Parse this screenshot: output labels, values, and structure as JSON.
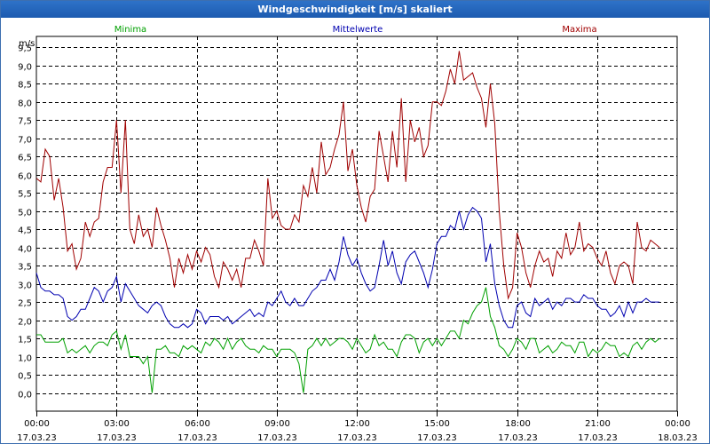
{
  "window": {
    "title": "Windgeschwindigkeit [m/s] skaliert"
  },
  "colors": {
    "minima": "#00a000",
    "mittel": "#0000b0",
    "maxima": "#a00000",
    "grid": "#000000",
    "title_bg": "#2468c0"
  },
  "chart_data": {
    "type": "line",
    "title": "Windgeschwindigkeit [m/s] skaliert",
    "ylabel": "m/s",
    "xlabel": "",
    "ylim": [
      -0.5,
      9.8
    ],
    "yticks": [
      "0,0",
      "0,5",
      "1,0",
      "1,5",
      "2,0",
      "2,5",
      "3,0",
      "3,5",
      "4,0",
      "4,5",
      "5,0",
      "5,5",
      "6,0",
      "6,5",
      "7,0",
      "7,5",
      "8,0",
      "8,5",
      "9,0",
      "9,5"
    ],
    "xlim": [
      0,
      24
    ],
    "xticks": [
      {
        "time": "00:00",
        "date": "17.03.23"
      },
      {
        "time": "03:00",
        "date": "17.03.23"
      },
      {
        "time": "06:00",
        "date": "17.03.23"
      },
      {
        "time": "09:00",
        "date": "17.03.23"
      },
      {
        "time": "12:00",
        "date": "17.03.23"
      },
      {
        "time": "15:00",
        "date": "17.03.23"
      },
      {
        "time": "18:00",
        "date": "17.03.23"
      },
      {
        "time": "21:00",
        "date": "17.03.23"
      },
      {
        "time": "00:00",
        "date": "18.03.23"
      }
    ],
    "legend": [
      "Minima",
      "Mittelwerte",
      "Maxima"
    ],
    "series": [
      {
        "name": "Maxima",
        "color": "#a00000",
        "x_start": 0,
        "x_step": 0.1667,
        "values": [
          5.9,
          5.8,
          6.7,
          6.5,
          5.3,
          5.9,
          5.1,
          3.9,
          4.1,
          3.4,
          3.7,
          4.7,
          4.3,
          4.7,
          4.8,
          5.8,
          6.2,
          6.2,
          7.5,
          5.5,
          7.5,
          4.5,
          4.1,
          4.9,
          4.3,
          4.5,
          4.0,
          5.1,
          4.6,
          4.2,
          3.7,
          2.9,
          3.7,
          3.3,
          3.8,
          3.4,
          3.9,
          3.6,
          4.0,
          3.8,
          3.2,
          2.9,
          3.6,
          3.4,
          3.1,
          3.4,
          2.9,
          3.7,
          3.7,
          4.2,
          3.9,
          3.5,
          5.9,
          4.8,
          5.0,
          4.6,
          4.5,
          4.5,
          4.9,
          4.7,
          5.7,
          5.4,
          6.2,
          5.5,
          6.9,
          6.0,
          6.2,
          6.7,
          7.1,
          8.0,
          6.1,
          6.7,
          5.7,
          5.1,
          4.7,
          5.4,
          5.6,
          7.2,
          6.5,
          5.8,
          7.2,
          6.2,
          8.1,
          5.8,
          7.5,
          6.9,
          7.3,
          6.5,
          6.8,
          8.0,
          8.0,
          7.9,
          8.3,
          8.9,
          8.5,
          9.4,
          8.6,
          8.7,
          8.8,
          8.4,
          8.1,
          7.3,
          8.5,
          7.4,
          5.0,
          3.5,
          2.6,
          2.9,
          4.4,
          4.0,
          3.3,
          2.9,
          3.5,
          3.9,
          3.6,
          3.7,
          3.2,
          3.9,
          3.7,
          4.4,
          3.8,
          4.0,
          4.7,
          3.9,
          4.1,
          4.0,
          3.7,
          3.5,
          3.9,
          3.3,
          3.0,
          3.5,
          3.6,
          3.5,
          3.0,
          4.7,
          4.0,
          3.9,
          4.2,
          4.1,
          4.0
        ]
      },
      {
        "name": "Mittelwerte",
        "color": "#0000b0",
        "x_start": 0,
        "x_step": 0.1667,
        "values": [
          3.3,
          2.9,
          2.8,
          2.8,
          2.7,
          2.7,
          2.6,
          2.1,
          2.0,
          2.1,
          2.3,
          2.3,
          2.6,
          2.9,
          2.8,
          2.5,
          2.8,
          2.9,
          3.2,
          2.5,
          3.0,
          2.8,
          2.6,
          2.4,
          2.3,
          2.2,
          2.4,
          2.5,
          2.4,
          2.1,
          1.9,
          1.8,
          1.8,
          1.9,
          1.8,
          1.9,
          2.3,
          2.2,
          1.9,
          2.1,
          2.1,
          2.1,
          2.0,
          2.1,
          1.9,
          2.0,
          2.1,
          2.2,
          2.3,
          2.1,
          2.2,
          2.1,
          2.5,
          2.4,
          2.6,
          2.8,
          2.5,
          2.4,
          2.6,
          2.4,
          2.4,
          2.6,
          2.8,
          2.9,
          3.1,
          3.1,
          3.4,
          3.1,
          3.6,
          4.3,
          3.8,
          3.5,
          3.7,
          3.3,
          3.0,
          2.8,
          2.9,
          3.5,
          4.2,
          3.5,
          3.9,
          3.3,
          3.0,
          3.6,
          3.8,
          3.9,
          3.6,
          3.3,
          2.9,
          3.4,
          4.1,
          4.3,
          4.3,
          4.6,
          4.5,
          5.0,
          4.5,
          4.9,
          5.1,
          5.0,
          4.8,
          3.6,
          4.1,
          3.0,
          2.4,
          2.0,
          1.8,
          1.8,
          2.4,
          2.5,
          2.2,
          2.1,
          2.6,
          2.4,
          2.5,
          2.6,
          2.3,
          2.5,
          2.4,
          2.6,
          2.6,
          2.5,
          2.5,
          2.7,
          2.6,
          2.6,
          2.4,
          2.3,
          2.3,
          2.1,
          2.2,
          2.4,
          2.1,
          2.5,
          2.2,
          2.5,
          2.5,
          2.6,
          2.5,
          2.5,
          2.5
        ]
      },
      {
        "name": "Minima",
        "color": "#00a000",
        "x_start": 0,
        "x_step": 0.1667,
        "values": [
          1.6,
          1.6,
          1.4,
          1.4,
          1.4,
          1.4,
          1.5,
          1.1,
          1.2,
          1.1,
          1.2,
          1.3,
          1.1,
          1.3,
          1.4,
          1.4,
          1.3,
          1.6,
          1.7,
          1.2,
          1.6,
          1.0,
          1.0,
          1.0,
          0.8,
          1.0,
          0.0,
          1.2,
          1.2,
          1.3,
          1.1,
          1.1,
          1.0,
          1.3,
          1.2,
          1.3,
          1.2,
          1.1,
          1.4,
          1.3,
          1.5,
          1.4,
          1.2,
          1.5,
          1.2,
          1.4,
          1.5,
          1.3,
          1.2,
          1.2,
          1.1,
          1.3,
          1.2,
          1.2,
          1.0,
          1.2,
          1.2,
          1.2,
          1.1,
          0.8,
          0.0,
          1.2,
          1.3,
          1.5,
          1.3,
          1.5,
          1.3,
          1.4,
          1.5,
          1.5,
          1.4,
          1.2,
          1.5,
          1.3,
          1.1,
          1.2,
          1.6,
          1.3,
          1.4,
          1.2,
          1.2,
          1.0,
          1.4,
          1.6,
          1.6,
          1.5,
          1.1,
          1.4,
          1.5,
          1.3,
          1.5,
          1.3,
          1.5,
          1.7,
          1.7,
          1.5,
          2.0,
          1.9,
          2.2,
          2.4,
          2.5,
          2.9,
          2.1,
          1.8,
          1.3,
          1.2,
          1.0,
          1.2,
          1.5,
          1.4,
          1.2,
          1.5,
          1.5,
          1.1,
          1.2,
          1.3,
          1.1,
          1.2,
          1.4,
          1.3,
          1.3,
          1.1,
          1.4,
          1.4,
          1.0,
          1.2,
          1.1,
          1.2,
          1.4,
          1.3,
          1.3,
          1.0,
          1.1,
          1.0,
          1.3,
          1.4,
          1.2,
          1.4,
          1.5,
          1.4,
          1.5
        ]
      }
    ]
  }
}
